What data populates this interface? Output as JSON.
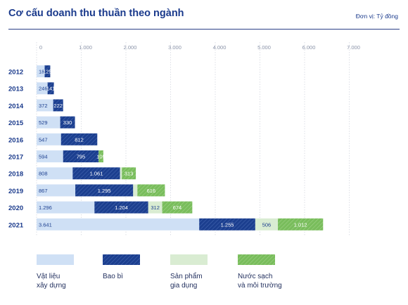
{
  "header": {
    "title": "Cơ cấu doanh thu thuần theo ngành",
    "unit": "Đơn vị: Tỷ đồng"
  },
  "chart_data": {
    "type": "bar",
    "orientation": "horizontal",
    "stacked": true,
    "title": "Cơ cấu doanh thu thuần theo ngành",
    "xlim": [
      0,
      7000
    ],
    "x_ticks": [
      "0",
      "1.000",
      "2.000",
      "3.000",
      "4.000",
      "5.000",
      "6.000",
      "7.000"
    ],
    "x_tick_values": [
      0,
      1000,
      2000,
      3000,
      4000,
      5000,
      6000,
      7000
    ],
    "grid": true,
    "legend_position": "bottom",
    "categories": [
      "2012",
      "2013",
      "2014",
      "2015",
      "2016",
      "2017",
      "2018",
      "2019",
      "2020",
      "2021"
    ],
    "series": [
      {
        "name": "Vật liệu\nxây dựng",
        "color": "#cfe0f5",
        "pattern": "solid",
        "values": [
          181,
          246,
          372,
          529,
          547,
          594,
          808,
          867,
          1296,
          3641
        ],
        "labels": [
          "181",
          "246",
          "372",
          "529",
          "547",
          "594",
          "808",
          "867",
          "1.296",
          "3.641"
        ]
      },
      {
        "name": "Bao bì",
        "color": "#1c3f8f",
        "pattern": "hatched",
        "values": [
          125,
          141,
          222,
          330,
          812,
          795,
          1061,
          1295,
          1204,
          1255
        ],
        "labels": [
          "125",
          "141",
          "222",
          "330",
          "812",
          "795",
          "1.061",
          "1.295",
          "1.204",
          "1.255"
        ]
      },
      {
        "name": "Sản phẩm\ngia dụng",
        "color": "#d9ecd2",
        "pattern": "solid",
        "values": [
          0,
          0,
          0,
          0,
          0,
          0,
          40,
          95,
          312,
          506
        ],
        "labels": [
          "",
          "",
          "",
          "",
          "",
          "",
          "",
          "",
          "312",
          "506"
        ]
      },
      {
        "name": "Nước sạch\nvà môi trường",
        "color": "#79bd5c",
        "pattern": "hatched",
        "values": [
          0,
          0,
          0,
          0,
          0,
          105,
          313,
          616,
          674,
          1012
        ],
        "labels": [
          "",
          "",
          "",
          "",
          "",
          "105",
          "313",
          "616",
          "674",
          "1.012"
        ]
      }
    ]
  }
}
